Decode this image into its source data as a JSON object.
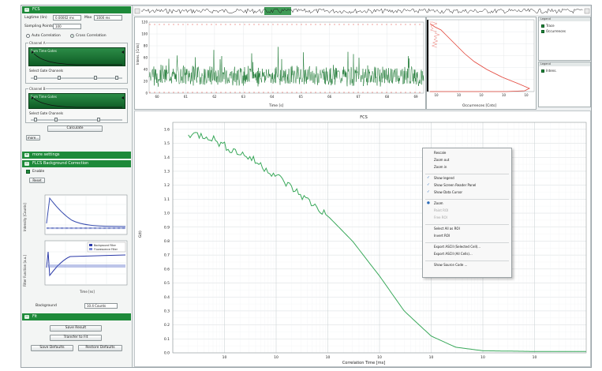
{
  "colors": {
    "accent": "#1e8a3a",
    "trace": "#1e7a35",
    "histogram": "#e3453a",
    "fcs_curve": "#39a85a"
  },
  "left_panel": {
    "fcs_section": {
      "title": "FCS",
      "lagtime_label": "Lagtime (lin)",
      "lagtime_value": "0.00002 ms",
      "max_label": "Max",
      "max_value": "1000 ms",
      "sampling_label": "Sampling Points",
      "sampling_value": "100",
      "auto_label": "Auto Correlation",
      "cross_label": "Cross Correlation",
      "channel_a_label": "Channel A",
      "channel_b_label": "Channel B",
      "channel_sub_label": "Sum Time Gates",
      "select_gates_label": "Select Gate Channels",
      "calculate_label": "Calculate",
      "more_label": "more..."
    },
    "more_settings_title": "more settings",
    "background_title": "FLCS Background Correction",
    "enable_label": "Enable",
    "reset_label": "Reset",
    "upper_plot_ylabel": "Intensity [Counts]",
    "lower_plot_ylabel": "Filter Function [a.u.]",
    "legend_background": "Background Filter",
    "legend_fluorescence": "Fluorescence Filter",
    "time_xlabel": "Time [ns]",
    "background_label": "Background",
    "background_value": "10.4 Counts",
    "fit_section_title": "Fit",
    "save_result_label": "Save Result",
    "transfer_label": "Transfer to Fit",
    "save_defaults_label": "Save Defaults",
    "restore_defaults_label": "Restore Defaults"
  },
  "trace_chart": {
    "ylabel": "Intens. [Cnts]",
    "xlabel": "Time [s]",
    "y_ticks": [
      "0",
      "20",
      "40",
      "60",
      "80",
      "100",
      "120"
    ],
    "x_ticks": [
      "60",
      "61",
      "62",
      "63",
      "64",
      "65",
      "66",
      "67",
      "68",
      "69"
    ]
  },
  "histogram_chart": {
    "xlabel": "Occurrences [Cnts]",
    "x_ticks": [
      "10",
      "10",
      "10",
      "10",
      "10"
    ]
  },
  "legend_top": {
    "header": "Legend",
    "items": [
      "Trace",
      "Occurrences"
    ]
  },
  "legend_bottom": {
    "header": "Legend",
    "items": [
      "Intens."
    ]
  },
  "fcs_chart": {
    "title": "FCS",
    "xlabel": "Correlation Time [ms]",
    "ylabel": "G(t)",
    "y_ticks": [
      "0.0",
      "0.1",
      "0.2",
      "0.3",
      "0.4",
      "0.5",
      "0.6",
      "0.7",
      "0.8",
      "0.9",
      "1.0",
      "1.1",
      "1.2",
      "1.3",
      "1.4",
      "1.5",
      "1.6"
    ],
    "x_ticks": [
      "10",
      "10",
      "10",
      "10",
      "10",
      "10",
      "10"
    ]
  },
  "context_menu": {
    "items": [
      {
        "label": "Rescale",
        "check": "",
        "disabled": false
      },
      {
        "label": "Zoom out",
        "check": "",
        "disabled": false
      },
      {
        "label": "Zoom in",
        "check": "",
        "disabled": false
      },
      {
        "sep": true
      },
      {
        "label": "Show legend",
        "check": "✓",
        "disabled": false
      },
      {
        "label": "Show Screen Reader Panel",
        "check": "✓",
        "disabled": false
      },
      {
        "label": "Show Data Cursor",
        "check": "✓",
        "disabled": false
      },
      {
        "sep": true
      },
      {
        "label": "Zoom",
        "check": "●",
        "disabled": false
      },
      {
        "label": "Paint ROI",
        "check": "",
        "disabled": true
      },
      {
        "label": "Free ROI",
        "check": "",
        "disabled": true
      },
      {
        "sep": true
      },
      {
        "label": "Select All as ROI",
        "check": "",
        "disabled": false
      },
      {
        "label": "Invert ROI",
        "check": "",
        "disabled": false
      },
      {
        "sep": true
      },
      {
        "label": "Export ASCII (Selected Cell)...",
        "check": "",
        "disabled": false
      },
      {
        "label": "Export ASCII (All Cells)...",
        "check": "",
        "disabled": false
      },
      {
        "sep": true
      },
      {
        "label": "Show Source Code ...",
        "check": "",
        "disabled": false
      }
    ]
  },
  "chart_data": [
    {
      "type": "line",
      "title": "FCS",
      "xlabel": "Correlation Time [ms]",
      "ylabel": "G(t)",
      "xscale": "log",
      "ylim": [
        0,
        1.65
      ],
      "grid": true,
      "x": [
        2e-05,
        5e-05,
        0.0001,
        0.0003,
        0.001,
        0.003,
        0.01,
        0.03,
        0.1,
        0.3,
        1,
        3,
        10,
        100,
        1000
      ],
      "y": [
        1.57,
        1.55,
        1.48,
        1.4,
        1.27,
        1.13,
        0.98,
        0.8,
        0.55,
        0.3,
        0.12,
        0.04,
        0.015,
        0.01,
        0.01
      ]
    }
  ]
}
